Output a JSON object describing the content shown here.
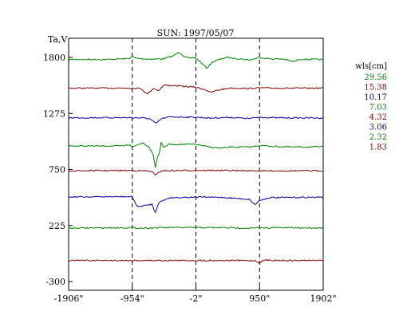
{
  "chart_data": {
    "type": "line",
    "title": "SUN: 1997/05/07",
    "ylabel": "Ta,V",
    "xlabel": "",
    "xlim": [
      -1906,
      1902
    ],
    "ylim": [
      -300,
      1800
    ],
    "x_ticks": [
      {
        "value": -1906,
        "label": "-1906\""
      },
      {
        "value": -954,
        "label": "-954\""
      },
      {
        "value": -2,
        "label": "-2\""
      },
      {
        "value": 950,
        "label": "950\""
      },
      {
        "value": 1902,
        "label": "1902\""
      }
    ],
    "y_ticks": [
      {
        "value": 1800,
        "label": "1800"
      },
      {
        "value": 1275,
        "label": "1275"
      },
      {
        "value": 750,
        "label": "750"
      },
      {
        "value": 225,
        "label": "225"
      },
      {
        "value": -300,
        "label": "-300"
      }
    ],
    "vlines": [
      -954,
      -2,
      950
    ],
    "legend_title": "wls[cm]",
    "legend_position": "right",
    "series": [
      {
        "name": "29.56",
        "color": "#008000",
        "base": 1781,
        "points": [
          [
            -1906,
            1781
          ],
          [
            -1300,
            1781
          ],
          [
            -1000,
            1790
          ],
          [
            -960,
            1810
          ],
          [
            -900,
            1792
          ],
          [
            -700,
            1784
          ],
          [
            -500,
            1786
          ],
          [
            -350,
            1812
          ],
          [
            -250,
            1850
          ],
          [
            -180,
            1810
          ],
          [
            -100,
            1790
          ],
          [
            -20,
            1800
          ],
          [
            60,
            1760
          ],
          [
            160,
            1700
          ],
          [
            250,
            1760
          ],
          [
            450,
            1800
          ],
          [
            600,
            1790
          ],
          [
            800,
            1776
          ],
          [
            950,
            1800
          ],
          [
            1100,
            1787
          ],
          [
            1300,
            1785
          ],
          [
            1460,
            1760
          ],
          [
            1550,
            1783
          ],
          [
            1902,
            1780
          ]
        ]
      },
      {
        "name": "15.38",
        "color": "#800000",
        "base": 1512,
        "points": [
          [
            -1906,
            1512
          ],
          [
            -1300,
            1512
          ],
          [
            -1000,
            1514
          ],
          [
            -820,
            1508
          ],
          [
            -730,
            1455
          ],
          [
            -640,
            1510
          ],
          [
            -560,
            1490
          ],
          [
            -480,
            1540
          ],
          [
            -300,
            1535
          ],
          [
            -100,
            1525
          ],
          [
            0,
            1520
          ],
          [
            150,
            1496
          ],
          [
            220,
            1470
          ],
          [
            300,
            1490
          ],
          [
            500,
            1513
          ],
          [
            800,
            1508
          ],
          [
            950,
            1515
          ],
          [
            1300,
            1511
          ],
          [
            1902,
            1512
          ]
        ]
      },
      {
        "name": "10.17",
        "color": "#0000a0",
        "base": 1235,
        "points": [
          [
            -1906,
            1235
          ],
          [
            -1000,
            1236
          ],
          [
            -800,
            1232
          ],
          [
            -700,
            1228
          ],
          [
            -600,
            1180
          ],
          [
            -520,
            1225
          ],
          [
            -400,
            1242
          ],
          [
            -200,
            1242
          ],
          [
            0,
            1240
          ],
          [
            200,
            1232
          ],
          [
            500,
            1238
          ],
          [
            800,
            1227
          ],
          [
            950,
            1240
          ],
          [
            1200,
            1234
          ],
          [
            1902,
            1233
          ]
        ]
      },
      {
        "name": "7.03",
        "color": "#008000",
        "base": 970,
        "points": [
          [
            -1906,
            970
          ],
          [
            -1100,
            970
          ],
          [
            -990,
            983
          ],
          [
            -954,
            960
          ],
          [
            -900,
            975
          ],
          [
            -800,
            1000
          ],
          [
            -700,
            960
          ],
          [
            -640,
            890
          ],
          [
            -610,
            765
          ],
          [
            -580,
            860
          ],
          [
            -550,
            900
          ],
          [
            -520,
            1010
          ],
          [
            -480,
            950
          ],
          [
            -420,
            985
          ],
          [
            -200,
            985
          ],
          [
            0,
            985
          ],
          [
            200,
            960
          ],
          [
            400,
            950
          ],
          [
            500,
            960
          ],
          [
            800,
            960
          ],
          [
            950,
            975
          ],
          [
            1200,
            965
          ],
          [
            1500,
            960
          ],
          [
            1902,
            963
          ]
        ]
      },
      {
        "name": "4.32",
        "color": "#800000",
        "base": 740,
        "points": [
          [
            -1906,
            738
          ],
          [
            -1000,
            740
          ],
          [
            -800,
            738
          ],
          [
            -700,
            735
          ],
          [
            -640,
            720
          ],
          [
            -610,
            692
          ],
          [
            -580,
            720
          ],
          [
            -500,
            738
          ],
          [
            0,
            742
          ],
          [
            500,
            740
          ],
          [
            950,
            737
          ],
          [
            1902,
            738
          ]
        ]
      },
      {
        "name": "3.06",
        "color": "#0000a0",
        "base": 493,
        "points": [
          [
            -1906,
            493
          ],
          [
            -1100,
            495
          ],
          [
            -954,
            495
          ],
          [
            -880,
            400
          ],
          [
            -760,
            412
          ],
          [
            -660,
            425
          ],
          [
            -610,
            345
          ],
          [
            -560,
            440
          ],
          [
            -400,
            485
          ],
          [
            0,
            492
          ],
          [
            400,
            488
          ],
          [
            800,
            470
          ],
          [
            880,
            420
          ],
          [
            950,
            460
          ],
          [
            1100,
            486
          ],
          [
            1902,
            490
          ]
        ]
      },
      {
        "name": "2.32",
        "color": "#008000",
        "base": 200,
        "points": [
          [
            -1906,
            200
          ],
          [
            -1000,
            205
          ],
          [
            -800,
            200
          ],
          [
            -600,
            203
          ],
          [
            -400,
            206
          ],
          [
            0,
            205
          ],
          [
            400,
            205
          ],
          [
            800,
            200
          ],
          [
            1200,
            205
          ],
          [
            1600,
            203
          ],
          [
            1902,
            203
          ]
        ]
      },
      {
        "name": "1.83",
        "color": "#800000",
        "base": -103,
        "points": [
          [
            -1906,
            -103
          ],
          [
            -1200,
            -103
          ],
          [
            -954,
            -103
          ],
          [
            -600,
            -103
          ],
          [
            0,
            -103
          ],
          [
            600,
            -103
          ],
          [
            880,
            -105
          ],
          [
            950,
            -125
          ],
          [
            1020,
            -100
          ],
          [
            1400,
            -103
          ],
          [
            1902,
            -103
          ]
        ]
      }
    ]
  }
}
